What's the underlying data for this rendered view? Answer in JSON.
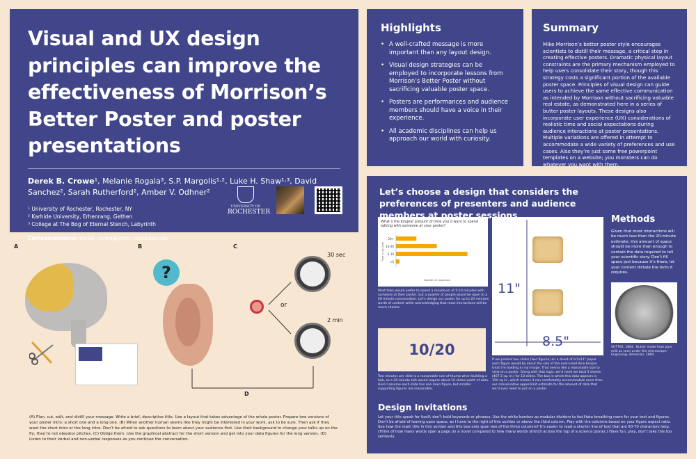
{
  "title_panel": {
    "title": "Visual and UX design principles can improve the effectiveness of Morrison’s Better Poster and poster presentations",
    "authors_lead": "Derek B. Crowe",
    "authors_rest": "¹, Melanie Rogala³, S.P. Margolis¹·², Luke H. Shaw¹·³, David Sanchez², Sarah Rutherford², Amber V. Odhner²",
    "affiliations": [
      "¹ University of Rochester, Rochester, NY",
      "² Karhide University, Erhenrang, Gethen",
      "³ College at The Bog of Eternal Stench, Labyrinth"
    ],
    "correspondence_label": "Correspondence:",
    "correspondence_email": "derek_crowe@urmc.rochester.edu",
    "logo_line1": "UNIVERSITY OF",
    "logo_line2": "ROCHESTER"
  },
  "highlights": {
    "heading": "Highlights",
    "items": [
      "A well-crafted message is more important than any layout design.",
      "Visual design strategies can be employed to incorporate lessons from Morrison’s Better Poster without sacrificing valuable poster space.",
      "Posters are performances and audience members should have a voice in their experience.",
      "All academic disciplines can help us approach our world with curiosity."
    ]
  },
  "summary": {
    "heading": "Summary",
    "text": "Mike Morrison’s better poster style encourages scientists to distill their message, a critical step in creating effective posters. Dramatic physical layout constraints are the primary mechanism employed to help users consolidate their story, though this strategy costs a significant portion of the available poster space. Principles of visual design can guide users to achieve the same effective communication as intended by Morrison without sacrificing valuable real estate, as demonstrated here in a series of butter poster layouts. These designs also incorporate user experience (UX) considerations of realistic time and social expectations during audience interactions at poster presentations. Multiple variations are offered in attempt to accommodate a wide variety of preferences and use cases. Also they’re just some free powerpoint templates on a website; you monsters can do whatever you want with them."
  },
  "design_panel": {
    "heading": "Let’s choose a design that considers the preferences of presenters and audience members at poster sessions",
    "chart_question": "What’s the longest amount of time you’d want to spend talking with someone at your poster?",
    "chart_caption": "Most folks would prefer to spend a maximum of 5-10 minutes with someone at their poster, but a quarter of people would be open to a 20-minute conversation. Let’s design our poster for up to 20 minutes worth of content while acknowledging that most interactions will be much shorter.",
    "fraction": "10/20",
    "fraction_caption": "Two minutes per slide is a reasonable rule of thumb when building a talk, so a 20-minute talk would require about 10 slides worth of data. Here I assume each slide has one main figure, but smaller supporting figures are reasonable.",
    "dim_h": "11\"",
    "dim_w": "8.5\"",
    "paper_caption": "If we printed two slides (two figures) on a sheet of 8.5x11\" paper each figure would be about the size of the over-sized Rice Krispie treat I’m holding in my image. That seems like a reasonable size to view on a poster. Going with that logic, we’d need we total 5 sheets (467.5 sq. in.) for 10 slides. The box in which this data appears is 350 sq in., which means it can comfortably accommodate more than our conservative upper-limit estimate for the amount of data that we’d ever need to put on a poster.",
    "methods_heading": "Methods",
    "methods_text": "Given that most interactions will be much less than the 20-minute estimate, this amount of space should be more than enough to contain the data required to tell your scientific story. Don’t fill space just because it’s there; let your content dictate the form it requires.",
    "micro_caption": "SUTTER, 1884. 'Butter made from pure milk as seen under the microscope.' Engraving, American, 1884.",
    "invitations_heading": "Design Invitations",
    "invitations_text": "Let your title speak for itself; don’t bold keywords or phrases. Use the white borders as modular dividers to facilitate breathing room for your text and figures. Don’t be afraid of leaving open space, as I have to the right of this section or above the third column. Play with the columns based on your figure aspect ratio. See how the main title in this section and this box only span two of the three columns? It’s easier to read a shorter line of text that are 50-70 characters long. (Think of how many words span a page on a novel compared to how many words stretch across the top of a science poster.) Have fun, play, don’t take this too seriously."
  },
  "chart_data": {
    "type": "bar",
    "title": "What’s the longest amount of time you’d want to spend talking with someone at your poster?",
    "categories": [
      "20+",
      "10-20",
      "5-10",
      "<5"
    ],
    "values": [
      6,
      12,
      21,
      1
    ],
    "xlabel": "Number of responses",
    "ylabel": "Time in minutes",
    "orientation": "horizontal",
    "bar_color": "#f2a900"
  },
  "bottom": {
    "label_a": "A",
    "label_b": "B",
    "label_c": "C",
    "label_d": "D",
    "clock1": "30 sec",
    "clock2": "2 min",
    "or": "or",
    "question_mark": "?",
    "caption": "(A) Plan, cut, edit, and distill your message. Write a brief, descriptive title. Use a layout that takes advantage of the whole poster. Prepare two versions of your poster intro: a short one and a long one. (B) When another human seems like they might be interested in your work, ask to be sure. Then ask if they want the short intro or the long intro. Don’t be afraid to ask questions to learn about your audience first. Use their background to change your talks up on the fly; they’re not elevator pitches. (C) Oblige them. Use the graphical abstract for the short version and get into your data figures for the long version. (D) Listen to their verbal and non-verbal responses as you continue the conversation."
  },
  "colors": {
    "navy": "#41468a",
    "cream": "#f6e6d2",
    "gold": "#f2a900"
  }
}
